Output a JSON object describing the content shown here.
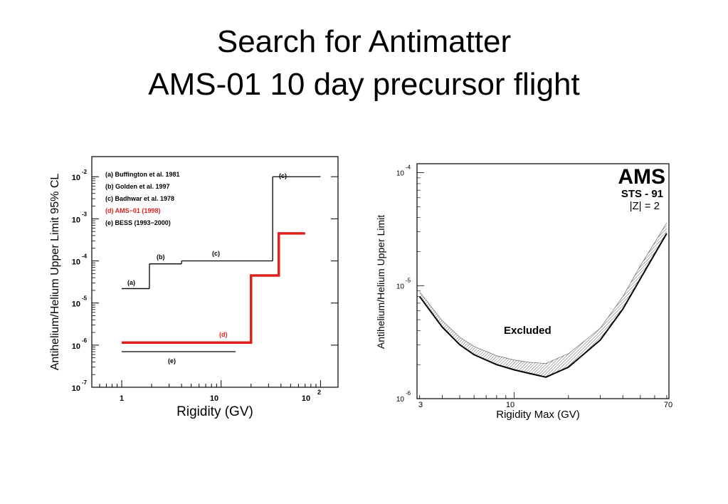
{
  "slide": {
    "title_line1": "Search for Antimatter",
    "title_line2": "AMS-01 10 day precursor flight"
  },
  "colors": {
    "axis": "#000000",
    "ams": "#e0201e",
    "hatch": "#333333"
  },
  "chart_data": [
    {
      "type": "line",
      "xlabel": "Rigidity (GV)",
      "ylabel": "Antihelium/Helium Upper Limit 95% CL",
      "xscale": "log",
      "yscale": "log",
      "xlim": [
        0.5,
        150
      ],
      "ylim": [
        1e-07,
        0.03
      ],
      "xtick_labels": [
        "1",
        "10",
        "10",
        "2"
      ],
      "ytick_labels": [
        {
          "base": "10",
          "exp": "-7"
        },
        {
          "base": "10",
          "exp": "-6"
        },
        {
          "base": "10",
          "exp": "-5"
        },
        {
          "base": "10",
          "exp": "-4"
        },
        {
          "base": "10",
          "exp": "-3"
        },
        {
          "base": "10",
          "exp": "-2"
        }
      ],
      "legend_position": "top-left",
      "legend": [
        "(a) Buffington et al. 1981",
        "(b) Golden et al. 1997",
        "(c) Badhwar et al. 1978",
        "(d) AMS−01 (1998)",
        "(e) BESS (1993−2000)"
      ],
      "series": [
        {
          "label": "(a)",
          "x": [
            1,
            1.9
          ],
          "y": [
            2.2e-05,
            2.2e-05
          ]
        },
        {
          "label": "(b)",
          "x": [
            1.9,
            4
          ],
          "y": [
            8.5e-05,
            8.5e-05
          ]
        },
        {
          "label": "(c)",
          "x": [
            4,
            33
          ],
          "y": [
            0.0001,
            0.0001
          ]
        },
        {
          "label": "(c)",
          "x": [
            33,
            100
          ],
          "y": [
            0.01,
            0.01
          ]
        },
        {
          "label": "(d)",
          "x": [
            1,
            20,
            20,
            38,
            38,
            70
          ],
          "y": [
            1.15e-06,
            1.15e-06,
            4.5e-05,
            4.5e-05,
            0.00045,
            0.00045
          ]
        },
        {
          "label": "(e)",
          "x": [
            1,
            14
          ],
          "y": [
            7e-07,
            7e-07
          ]
        }
      ]
    },
    {
      "type": "area",
      "xlabel": "Rigidity Max (GV)",
      "ylabel": "Antihelium/Helium Upper Limit",
      "xscale": "log",
      "yscale": "log",
      "xlim": [
        2.9,
        72
      ],
      "ylim": [
        1e-06,
        0.00012
      ],
      "xtick_labels": [
        "3",
        "10",
        "70"
      ],
      "ytick_labels": [
        {
          "base": "10",
          "exp": "-6"
        },
        {
          "base": "10",
          "exp": "-5"
        },
        {
          "base": "10",
          "exp": "-4"
        }
      ],
      "logo": "AMS",
      "mission": "STS - 91",
      "charge_text": "|Z| = 2",
      "region_label": "Excluded",
      "series": [
        {
          "name": "limit",
          "x": [
            3,
            4,
            5,
            6,
            8,
            10,
            12,
            15,
            20,
            30,
            40,
            50,
            60,
            70
          ],
          "y": [
            8e-06,
            4.3e-06,
            3e-06,
            2.45e-06,
            2e-06,
            1.8e-06,
            1.68e-06,
            1.55e-06,
            1.9e-06,
            3.3e-06,
            6.2e-06,
            1.15e-05,
            1.9e-05,
            2.9e-05
          ]
        },
        {
          "name": "band-upper",
          "x": [
            3,
            4,
            5,
            6,
            8,
            10,
            12,
            15,
            20,
            30,
            40,
            50,
            60,
            70
          ],
          "y": [
            8.8e-06,
            4.9e-06,
            3.5e-06,
            2.9e-06,
            2.4e-06,
            2.2e-06,
            2.1e-06,
            2.05e-06,
            2.5e-06,
            4.2e-06,
            8e-06,
            1.5e-05,
            2.4e-05,
            3.6e-05
          ]
        }
      ]
    }
  ]
}
